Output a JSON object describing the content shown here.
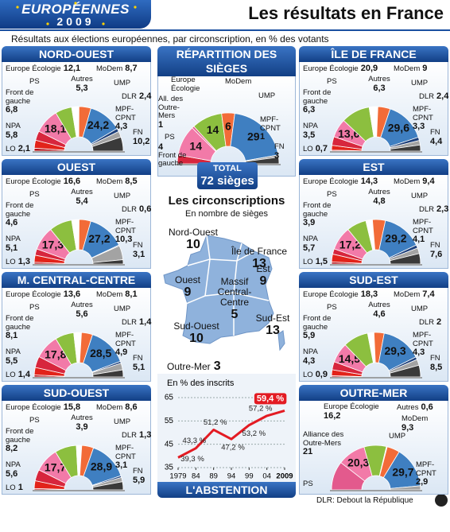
{
  "header": {
    "logo_title": "EUROPÉENNES",
    "logo_year": "2009",
    "title": "Les résultats en France",
    "subtitle": "Résultats aux élections européennes, par circonscription, en % des votants"
  },
  "chart_data": [
    {
      "type": "hemicycle",
      "title": "NORD-OUEST",
      "categories": [
        "LO",
        "NPA",
        "Front de gauche",
        "PS",
        "Europe Écologie",
        "Autres",
        "MoDem",
        "UMP",
        "DLR",
        "MPF-CPNT",
        "FN"
      ],
      "values": [
        2.1,
        5.8,
        6.8,
        18.1,
        12.1,
        5.3,
        8.7,
        24.2,
        2.4,
        4.3,
        10.2
      ],
      "value_labels": [
        "2,1",
        "5,8",
        "6,8",
        "18,1",
        "12,1",
        "5,3",
        "8,7",
        "24,2",
        "2,4",
        "4,3",
        "10,2"
      ],
      "colors": [
        "#b5121b",
        "#e2231a",
        "#d7263d",
        "#f27aa8",
        "#8cbf3f",
        "#ffffff",
        "#f26b38",
        "#3f7fc1",
        "#1d3f7a",
        "#a3a3a3",
        "#3a3a3a"
      ]
    },
    {
      "type": "hemicycle",
      "title": "OUEST",
      "categories": [
        "LO",
        "NPA",
        "Front de gauche",
        "PS",
        "Europe Écologie",
        "Autres",
        "MoDem",
        "UMP",
        "DLR",
        "MPF-CPNT",
        "FN"
      ],
      "values": [
        1.3,
        5.1,
        4.6,
        17.3,
        16.6,
        5.4,
        8.5,
        27.2,
        0.6,
        10.3,
        3.1
      ],
      "value_labels": [
        "1,3",
        "5,1",
        "4,6",
        "17,3",
        "16,6",
        "5,4",
        "8,5",
        "27,2",
        "0,6",
        "10,3",
        "3,1"
      ],
      "colors": [
        "#b5121b",
        "#e2231a",
        "#d7263d",
        "#f27aa8",
        "#8cbf3f",
        "#ffffff",
        "#f26b38",
        "#3f7fc1",
        "#1d3f7a",
        "#a3a3a3",
        "#3a3a3a"
      ]
    },
    {
      "type": "hemicycle",
      "title": "M. CENTRAL-CENTRE",
      "categories": [
        "LO",
        "NPA",
        "Front de gauche",
        "PS",
        "Europe Écologie",
        "Autres",
        "MoDem",
        "UMP",
        "DLR",
        "MPF-CPNT",
        "FN"
      ],
      "values": [
        1.4,
        5.5,
        8.1,
        17.8,
        13.6,
        5.6,
        8.1,
        28.5,
        1.4,
        4.9,
        5.1
      ],
      "value_labels": [
        "1,4",
        "5,5",
        "8,1",
        "17,8",
        "13,6",
        "5,6",
        "8,1",
        "28,5",
        "1,4",
        "4,9",
        "5,1"
      ],
      "colors": [
        "#b5121b",
        "#e2231a",
        "#d7263d",
        "#f27aa8",
        "#8cbf3f",
        "#ffffff",
        "#f26b38",
        "#3f7fc1",
        "#1d3f7a",
        "#a3a3a3",
        "#3a3a3a"
      ]
    },
    {
      "type": "hemicycle",
      "title": "SUD-OUEST",
      "categories": [
        "LO",
        "NPA",
        "Front de gauche",
        "PS",
        "Europe Écologie",
        "Autres",
        "MoDem",
        "UMP",
        "DLR",
        "MPF-CPNT",
        "FN"
      ],
      "values": [
        1,
        5.6,
        8.2,
        17.7,
        15.8,
        3.9,
        8.6,
        28.9,
        1.3,
        3.1,
        5.9
      ],
      "value_labels": [
        "1",
        "5,6",
        "8,2",
        "17,7",
        "15,8",
        "3,9",
        "8,6",
        "28,9",
        "1,3",
        "3,1",
        "5,9"
      ],
      "colors": [
        "#b5121b",
        "#e2231a",
        "#d7263d",
        "#f27aa8",
        "#8cbf3f",
        "#ffffff",
        "#f26b38",
        "#3f7fc1",
        "#1d3f7a",
        "#a3a3a3",
        "#3a3a3a"
      ]
    },
    {
      "type": "hemicycle",
      "title": "ÎLE DE FRANCE",
      "categories": [
        "LO",
        "NPA",
        "Front de gauche",
        "PS",
        "Europe Écologie",
        "Autres",
        "MoDem",
        "UMP",
        "DLR",
        "MPF-CPNT",
        "FN"
      ],
      "values": [
        0.7,
        3.5,
        6.3,
        13.6,
        20.9,
        6.3,
        9,
        29.6,
        2.4,
        3.3,
        4.4
      ],
      "value_labels": [
        "0,7",
        "3,5",
        "6,3",
        "13,6",
        "20,9",
        "6,3",
        "9",
        "29,6",
        "2,4",
        "3,3",
        "4,4"
      ],
      "colors": [
        "#b5121b",
        "#e2231a",
        "#d7263d",
        "#f27aa8",
        "#8cbf3f",
        "#ffffff",
        "#f26b38",
        "#3f7fc1",
        "#1d3f7a",
        "#a3a3a3",
        "#3a3a3a"
      ]
    },
    {
      "type": "hemicycle",
      "title": "EST",
      "categories": [
        "LO",
        "NPA",
        "Front de gauche",
        "PS",
        "Europe Écologie",
        "Autres",
        "MoDem",
        "UMP",
        "DLR",
        "MPF-CPNT",
        "FN"
      ],
      "values": [
        1.5,
        5.7,
        3.9,
        17.2,
        14.3,
        4.8,
        9.4,
        29.2,
        2.3,
        4.1,
        7.6
      ],
      "value_labels": [
        "1,5",
        "5,7",
        "3,9",
        "17,2",
        "14,3",
        "4,8",
        "9,4",
        "29,2",
        "2,3",
        "4,1",
        "7,6"
      ],
      "colors": [
        "#b5121b",
        "#e2231a",
        "#d7263d",
        "#f27aa8",
        "#8cbf3f",
        "#ffffff",
        "#f26b38",
        "#3f7fc1",
        "#1d3f7a",
        "#a3a3a3",
        "#3a3a3a"
      ]
    },
    {
      "type": "hemicycle",
      "title": "SUD-EST",
      "categories": [
        "LO",
        "NPA",
        "Front de gauche",
        "PS",
        "Europe Écologie",
        "Autres",
        "MoDem",
        "UMP",
        "DLR",
        "MPF-CPNT",
        "FN"
      ],
      "values": [
        0.9,
        4.3,
        5.9,
        14.5,
        18.3,
        4.6,
        7.4,
        29.3,
        2,
        4.3,
        8.5
      ],
      "value_labels": [
        "0,9",
        "4,3",
        "5,9",
        "14,5",
        "18,3",
        "4,6",
        "7,4",
        "29,3",
        "2",
        "4,3",
        "8,5"
      ],
      "colors": [
        "#b5121b",
        "#e2231a",
        "#d7263d",
        "#f27aa8",
        "#8cbf3f",
        "#ffffff",
        "#f26b38",
        "#3f7fc1",
        "#1d3f7a",
        "#a3a3a3",
        "#3a3a3a"
      ]
    },
    {
      "type": "hemicycle",
      "title": "OUTRE-MER",
      "categories": [
        "Alliance des Outre-Mers",
        "PS",
        "Europe Écologie",
        "Autres",
        "MoDem",
        "UMP",
        "MPF-CPNT"
      ],
      "values": [
        21,
        20.3,
        16.2,
        0.6,
        9.3,
        29.7,
        2.9
      ],
      "value_labels": [
        "21",
        "20,3",
        "16,2",
        "0,6",
        "9,3",
        "29,7",
        "2,9"
      ],
      "colors": [
        "#e35a8d",
        "#f27aa8",
        "#8cbf3f",
        "#ffffff",
        "#f26b38",
        "#3f7fc1",
        "#a3a3a3"
      ]
    },
    {
      "type": "hemicycle",
      "title": "RÉPARTITION DES SIÈGES",
      "categories": [
        "Front de gauche",
        "PS",
        "All. des Outre-Mers",
        "Europe Écologie",
        "MoDem",
        "UMP",
        "MPF-CPNT",
        "FN"
      ],
      "values": [
        4,
        14,
        1,
        14,
        6,
        29,
        1,
        3
      ],
      "colors": [
        "#d7263d",
        "#f27aa8",
        "#e35a8d",
        "#8cbf3f",
        "#f26b38",
        "#3f7fc1",
        "#a3a3a3",
        "#3a3a3a"
      ],
      "total_label": "TOTAL",
      "total": "72 sièges"
    },
    {
      "type": "line",
      "title": "L'ABSTENTION",
      "subtitle": "En % des inscrits",
      "x": [
        1979,
        1984,
        1989,
        1994,
        1999,
        2004,
        2009
      ],
      "values": [
        39.3,
        43.3,
        51.2,
        47.2,
        53.2,
        57.2,
        59.4
      ],
      "value_labels": [
        "39,3 %",
        "43,3 %",
        "51,2 %",
        "47,2 %",
        "53,2 %",
        "57,2 %",
        "59,4 %"
      ],
      "xlim": [
        1979,
        2009
      ],
      "xticks": [
        1979,
        {
          "value": 1984,
          "label": "84"
        },
        {
          "value": 1989,
          "label": "89"
        },
        {
          "value": 1994,
          "label": "94"
        },
        {
          "value": 1999,
          "label": "99"
        },
        {
          "value": 2004,
          "label": "04"
        },
        2009
      ],
      "ylim": [
        35,
        65
      ],
      "yticks": [
        35,
        45,
        55,
        65
      ],
      "grid": true,
      "color": "#e31b23"
    }
  ],
  "map": {
    "title": "Les circonscriptions",
    "subtitle": "En nombre de sièges",
    "regions": [
      {
        "name": "Nord-Ouest",
        "seats": 10
      },
      {
        "name": "Île de France",
        "seats": 13
      },
      {
        "name": "Est",
        "seats": 9
      },
      {
        "name": "Ouest",
        "seats": 9
      },
      {
        "name": "Massif Central-Centre",
        "seats": 5
      },
      {
        "name": "Sud-Ouest",
        "seats": 10
      },
      {
        "name": "Sud-Est",
        "seats": 13
      },
      {
        "name": "Outre-Mer",
        "seats": 3
      }
    ]
  },
  "footer": "DLR: Debout la République"
}
